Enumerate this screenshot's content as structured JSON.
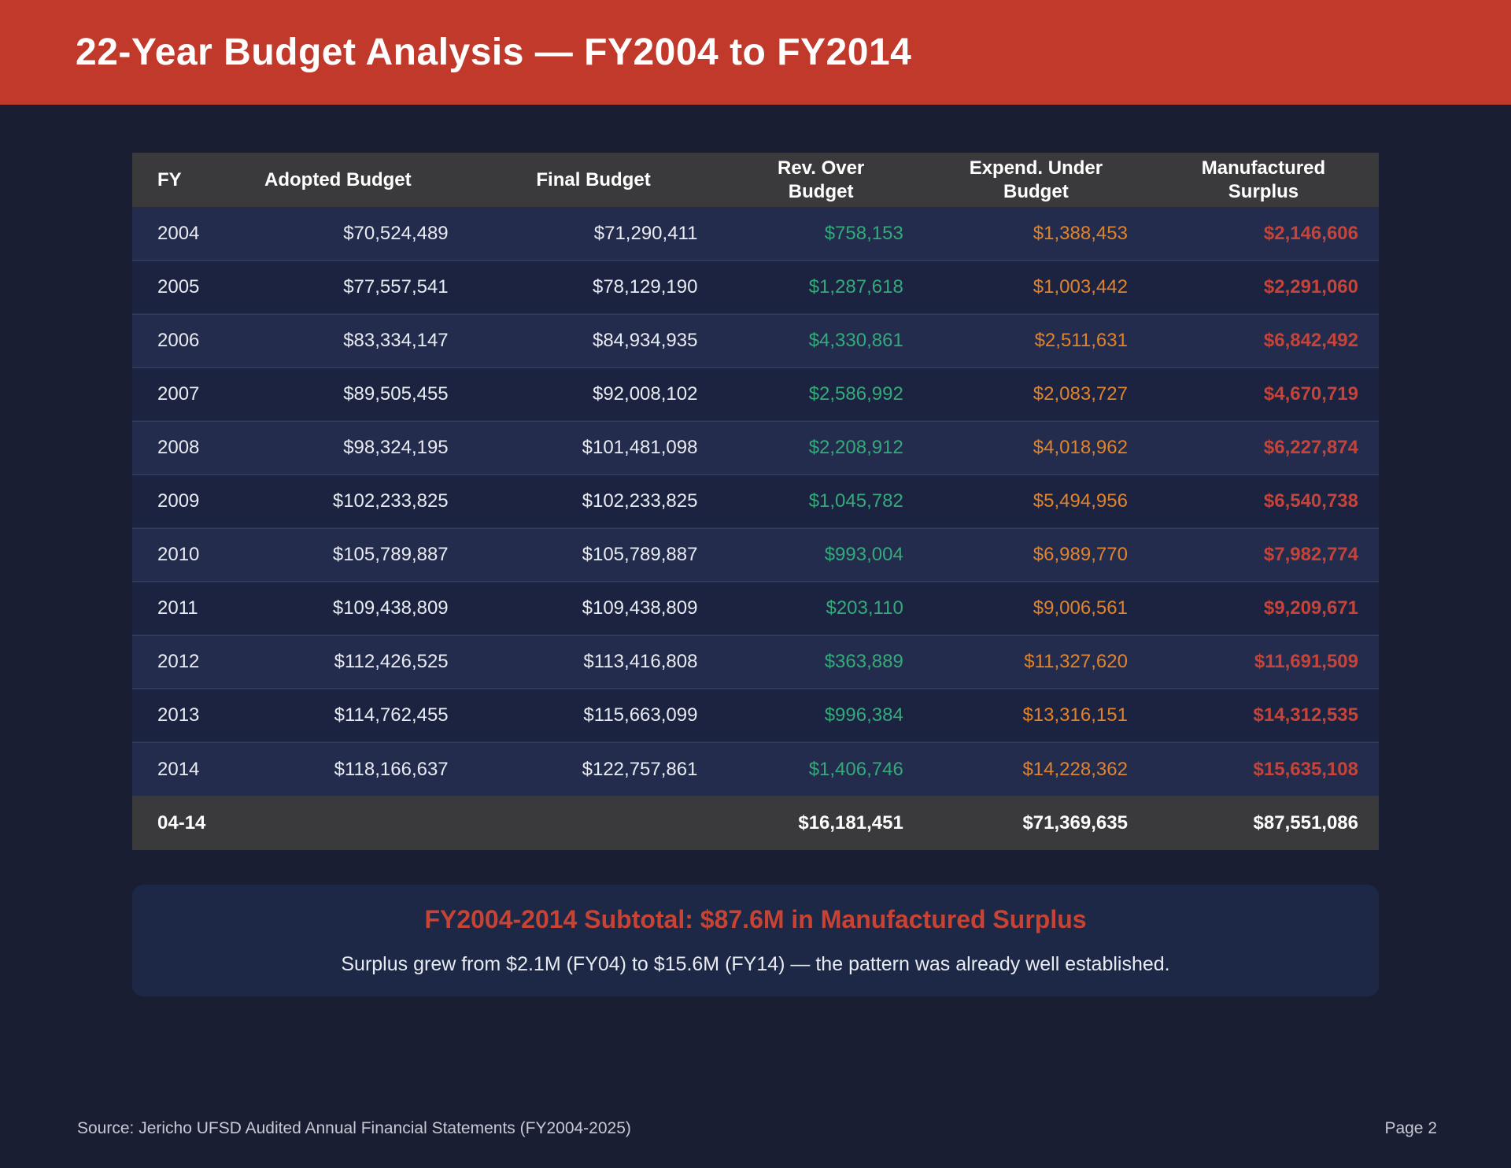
{
  "header": {
    "title": "22-Year Budget Analysis — FY2004 to FY2014"
  },
  "table": {
    "columns": [
      "FY",
      "Adopted Budget",
      "Final Budget",
      "Rev. Over\nBudget",
      "Expend. Under\nBudget",
      "Manufactured\nSurplus"
    ],
    "rows": [
      {
        "fy": "2004",
        "adopted": "$70,524,489",
        "final": "$71,290,411",
        "rev_over": "$758,153",
        "expend_under": "$1,388,453",
        "surplus": "$2,146,606"
      },
      {
        "fy": "2005",
        "adopted": "$77,557,541",
        "final": "$78,129,190",
        "rev_over": "$1,287,618",
        "expend_under": "$1,003,442",
        "surplus": "$2,291,060"
      },
      {
        "fy": "2006",
        "adopted": "$83,334,147",
        "final": "$84,934,935",
        "rev_over": "$4,330,861",
        "expend_under": "$2,511,631",
        "surplus": "$6,842,492"
      },
      {
        "fy": "2007",
        "adopted": "$89,505,455",
        "final": "$92,008,102",
        "rev_over": "$2,586,992",
        "expend_under": "$2,083,727",
        "surplus": "$4,670,719"
      },
      {
        "fy": "2008",
        "adopted": "$98,324,195",
        "final": "$101,481,098",
        "rev_over": "$2,208,912",
        "expend_under": "$4,018,962",
        "surplus": "$6,227,874"
      },
      {
        "fy": "2009",
        "adopted": "$102,233,825",
        "final": "$102,233,825",
        "rev_over": "$1,045,782",
        "expend_under": "$5,494,956",
        "surplus": "$6,540,738"
      },
      {
        "fy": "2010",
        "adopted": "$105,789,887",
        "final": "$105,789,887",
        "rev_over": "$993,004",
        "expend_under": "$6,989,770",
        "surplus": "$7,982,774"
      },
      {
        "fy": "2011",
        "adopted": "$109,438,809",
        "final": "$109,438,809",
        "rev_over": "$203,110",
        "expend_under": "$9,006,561",
        "surplus": "$9,209,671"
      },
      {
        "fy": "2012",
        "adopted": "$112,426,525",
        "final": "$113,416,808",
        "rev_over": "$363,889",
        "expend_under": "$11,327,620",
        "surplus": "$11,691,509"
      },
      {
        "fy": "2013",
        "adopted": "$114,762,455",
        "final": "$115,663,099",
        "rev_over": "$996,384",
        "expend_under": "$13,316,151",
        "surplus": "$14,312,535"
      },
      {
        "fy": "2014",
        "adopted": "$118,166,637",
        "final": "$122,757,861",
        "rev_over": "$1,406,746",
        "expend_under": "$14,228,362",
        "surplus": "$15,635,108"
      }
    ],
    "total": {
      "fy": "04-14",
      "rev_over": "$16,181,451",
      "expend_under": "$71,369,635",
      "surplus": "$87,551,086"
    }
  },
  "summary": {
    "heading": "FY2004-2014 Subtotal: $87.6M in Manufactured Surplus",
    "body": "Surplus grew from $2.1M (FY04) to $15.6M (FY14) — the pattern was already well established."
  },
  "footer": {
    "source": "Source: Jericho UFSD Audited Annual Financial Statements (FY2004-2025)",
    "page": "Page 2"
  },
  "colors": {
    "banner_red": "#c0392b",
    "page_background": "#1a1e32",
    "row_light": "#232c4d",
    "row_dark": "#1b2340",
    "header_gray": "#3a3a3c",
    "positive_green": "#36a97b",
    "warning_orange": "#df832d",
    "negative_red": "#c5443a",
    "summary_heading_red": "#c74334"
  }
}
